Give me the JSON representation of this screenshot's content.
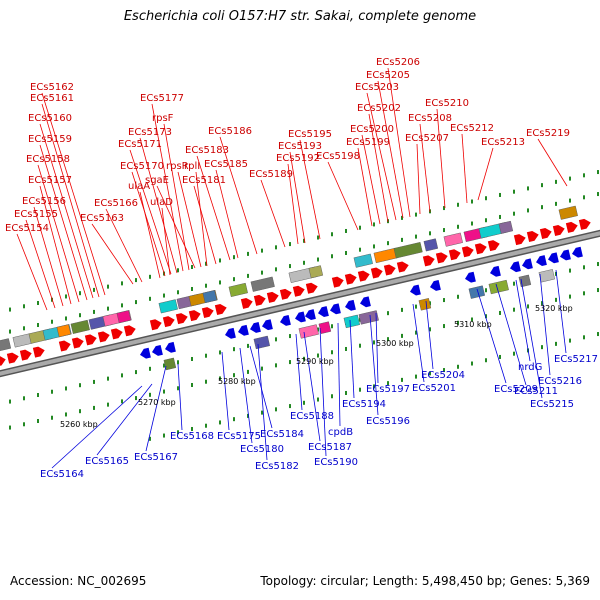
{
  "title": "Escherichia coli O157:H7 str. Sakai, complete genome",
  "accession": "Accession: NC_002695",
  "topology": "Topology: circular; Length: 5,498,450 bp; Genes: 5,369",
  "colors": {
    "forward": "#ee0000",
    "reverse": "#0000dd",
    "fwd_label": "#cc0000",
    "rev_label": "#0000cc",
    "backbone": "#888888",
    "ticks": "#228822"
  },
  "kbp_labels": [
    "5260 kbp",
    "5270 kbp",
    "5280 kbp",
    "5290 kbp",
    "5300 kbp",
    "5310 kbp",
    "5320 kbp"
  ],
  "forward_genes": [
    "ECs5154",
    "ECs5155",
    "ECs5156",
    "ECs5157",
    "ECs5158",
    "ECs5159",
    "ECs5160",
    "ECs5161",
    "ECs5162",
    "ECs5163",
    "ECs5166",
    "ECs5170",
    "ECs5171",
    "ECs5173",
    "ECs5177",
    "rpsF",
    "ulaA",
    "sgaE",
    "rpsR",
    "ulaD",
    "rplI",
    "ECs5181",
    "ECs5183",
    "ECs5185",
    "ECs5186",
    "ECs5189",
    "ECs5192",
    "ECs5193",
    "ECs5195",
    "ECs5198",
    "ECs5199",
    "ECs5200",
    "ECs5202",
    "ECs5203",
    "ECs5205",
    "ECs5206",
    "ECs5207",
    "ECs5208",
    "ECs5210",
    "ECs5212",
    "ECs5213",
    "ECs5219"
  ],
  "reverse_genes": [
    "ECs5164",
    "ECs5165",
    "ECs5167",
    "ECs5168",
    "ECs5175",
    "ECs5180",
    "ECs5182",
    "ECs5184",
    "ECs5187",
    "ECs5188",
    "ECs5190",
    "cpdB",
    "ECs5194",
    "ECs5196",
    "ECs5197",
    "ECs5201",
    "ECs5204",
    "ECs5209",
    "ECs5211",
    "nrdG",
    "ECs5215",
    "ECs5216",
    "ECs5217"
  ]
}
